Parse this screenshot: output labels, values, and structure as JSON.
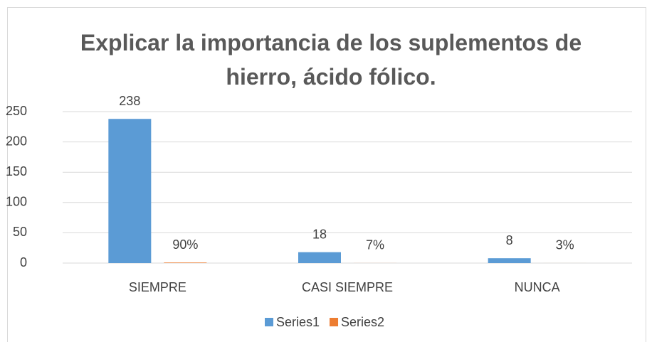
{
  "chart_data": {
    "type": "bar",
    "title": "Explicar la importancia de los suplementos de hierro, ácido fólico.",
    "categories": [
      "SIEMPRE",
      "CASI SIEMPRE",
      "NUNCA"
    ],
    "series": [
      {
        "name": "Series1",
        "color": "#5b9bd5",
        "values": [
          238,
          18,
          8
        ]
      },
      {
        "name": "Series2",
        "color": "#ed7d31",
        "values": [
          0.9,
          0.07,
          0.03
        ],
        "value_labels": [
          "90%",
          "7%",
          "3%"
        ]
      }
    ],
    "ylim": [
      0,
      250
    ],
    "yticks": [
      0,
      50,
      100,
      150,
      200,
      250
    ],
    "grid": true,
    "legend": "bottom"
  }
}
